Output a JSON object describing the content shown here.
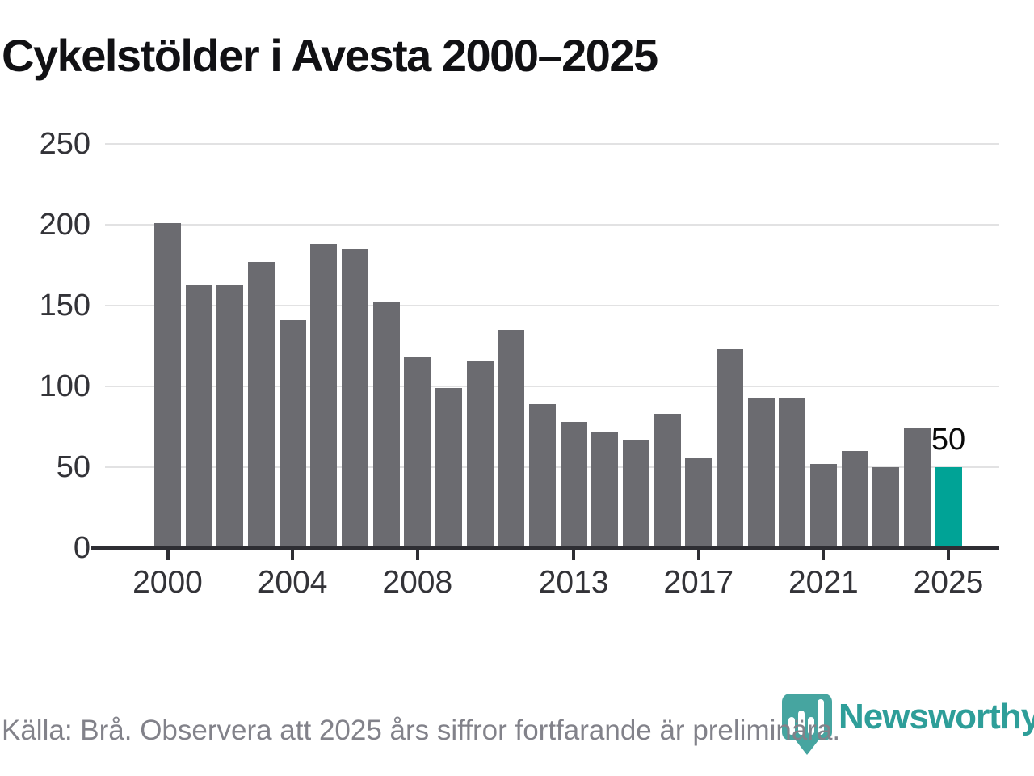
{
  "title": "Cykelstölder i Avesta 2000–2025",
  "footer": {
    "source": "Källa: Brå. Observera att 2025 års siffror fortfarande är preliminära."
  },
  "branding": {
    "name": "Newsworthy",
    "icon": "newsworthy-pin-barchart-icon",
    "color": "#2e9e99",
    "icon_color": "#46a5a0"
  },
  "chart_data": {
    "type": "bar",
    "title": "Cykelstölder i Avesta 2000–2025",
    "categories": [
      2000,
      2001,
      2002,
      2003,
      2004,
      2005,
      2006,
      2007,
      2008,
      2009,
      2010,
      2011,
      2012,
      2013,
      2014,
      2015,
      2016,
      2017,
      2018,
      2019,
      2020,
      2021,
      2022,
      2023,
      2024,
      2025
    ],
    "values": [
      201,
      163,
      163,
      177,
      141,
      188,
      185,
      152,
      118,
      99,
      116,
      135,
      89,
      78,
      72,
      67,
      83,
      56,
      123,
      93,
      93,
      52,
      60,
      50,
      74,
      50
    ],
    "xlabel": "",
    "ylabel": "",
    "ylim": [
      0,
      250
    ],
    "yticks": [
      0,
      50,
      100,
      150,
      200,
      250
    ],
    "xticks": [
      2000,
      2004,
      2008,
      2013,
      2017,
      2021,
      2025
    ],
    "grid": true,
    "legend_position": "none",
    "highlight_index": 25,
    "data_labels": [
      {
        "index": 25,
        "text": "50"
      }
    ],
    "colors": {
      "bar": "#6b6b70",
      "highlight": "#00a396"
    }
  }
}
